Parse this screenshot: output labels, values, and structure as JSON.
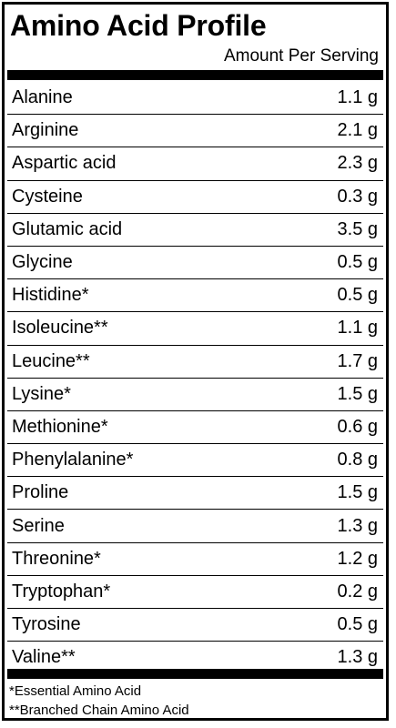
{
  "label": {
    "title": "Amino Acid Profile",
    "subtitle": "Amount Per Serving",
    "rows": [
      {
        "name": "Alanine",
        "amount": "1.1 g"
      },
      {
        "name": "Arginine",
        "amount": "2.1 g"
      },
      {
        "name": "Aspartic acid",
        "amount": "2.3 g"
      },
      {
        "name": "Cysteine",
        "amount": "0.3 g"
      },
      {
        "name": "Glutamic acid",
        "amount": "3.5 g"
      },
      {
        "name": "Glycine",
        "amount": "0.5 g"
      },
      {
        "name": "Histidine*",
        "amount": "0.5 g"
      },
      {
        "name": "Isoleucine**",
        "amount": "1.1 g"
      },
      {
        "name": "Leucine**",
        "amount": "1.7 g"
      },
      {
        "name": "Lysine*",
        "amount": "1.5 g"
      },
      {
        "name": "Methionine*",
        "amount": "0.6 g"
      },
      {
        "name": "Phenylalanine*",
        "amount": "0.8 g"
      },
      {
        "name": "Proline",
        "amount": "1.5 g"
      },
      {
        "name": "Serine",
        "amount": "1.3 g"
      },
      {
        "name": "Threonine*",
        "amount": "1.2 g"
      },
      {
        "name": "Tryptophan*",
        "amount": "0.2 g"
      },
      {
        "name": "Tyrosine",
        "amount": "0.5 g"
      },
      {
        "name": "Valine**",
        "amount": "1.3 g"
      }
    ],
    "footnotes": [
      "*Essential Amino Acid",
      "**Branched Chain Amino Acid"
    ]
  }
}
